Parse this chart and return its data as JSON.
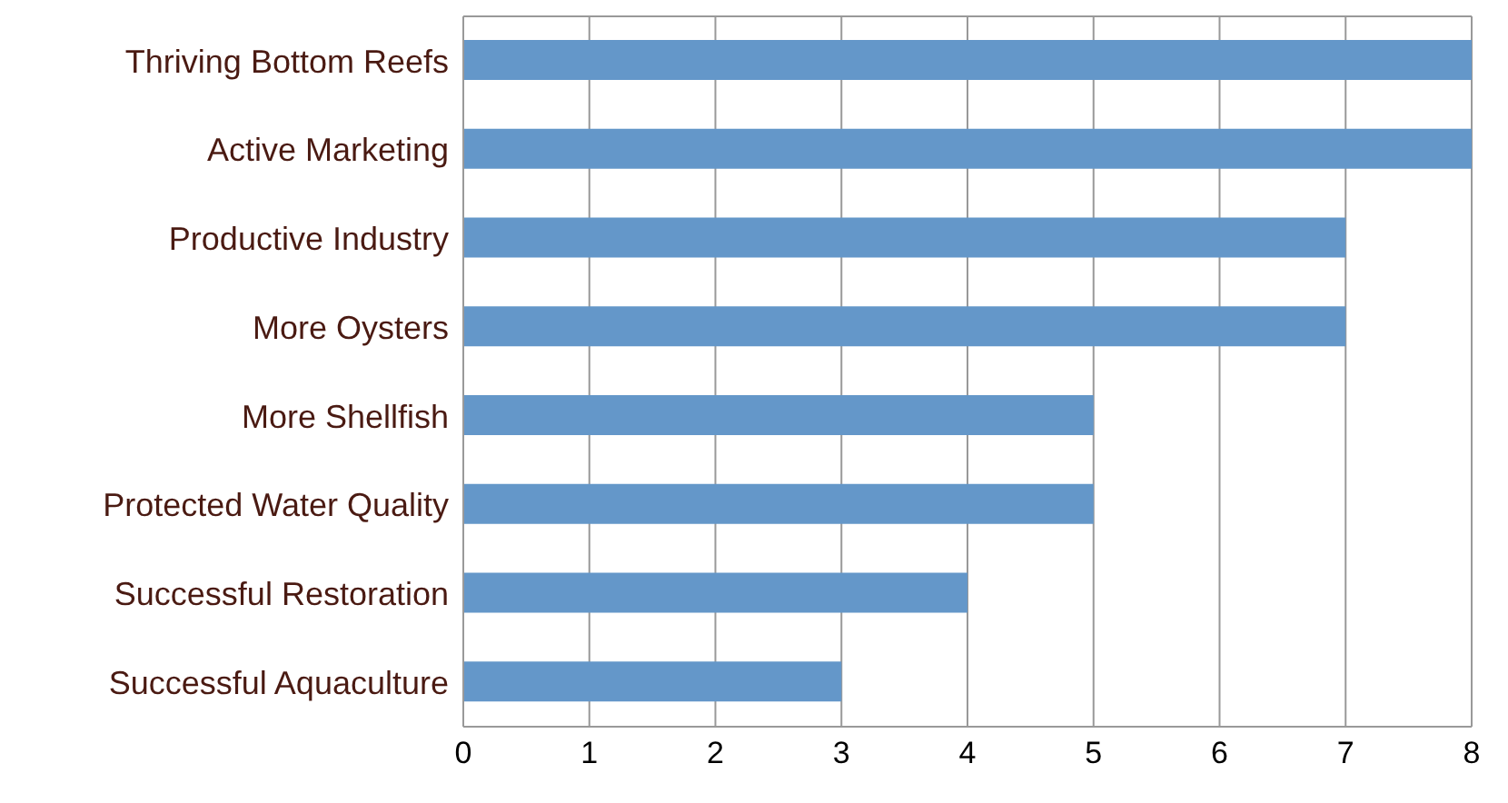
{
  "chart_data": {
    "type": "bar",
    "orientation": "horizontal",
    "categories": [
      "Thriving Bottom Reefs",
      "Active Marketing",
      "Productive Industry",
      "More Oysters",
      "More Shellfish",
      "Protected Water Quality",
      "Successful Restoration",
      "Successful Aquaculture"
    ],
    "values": [
      8,
      8,
      7,
      7,
      5,
      5,
      4,
      3
    ],
    "color": "#6497c9",
    "xlim": [
      0,
      8
    ],
    "xticks": [
      0,
      1,
      2,
      3,
      4,
      5,
      6,
      7,
      8
    ],
    "grid": "x",
    "legend": false
  }
}
